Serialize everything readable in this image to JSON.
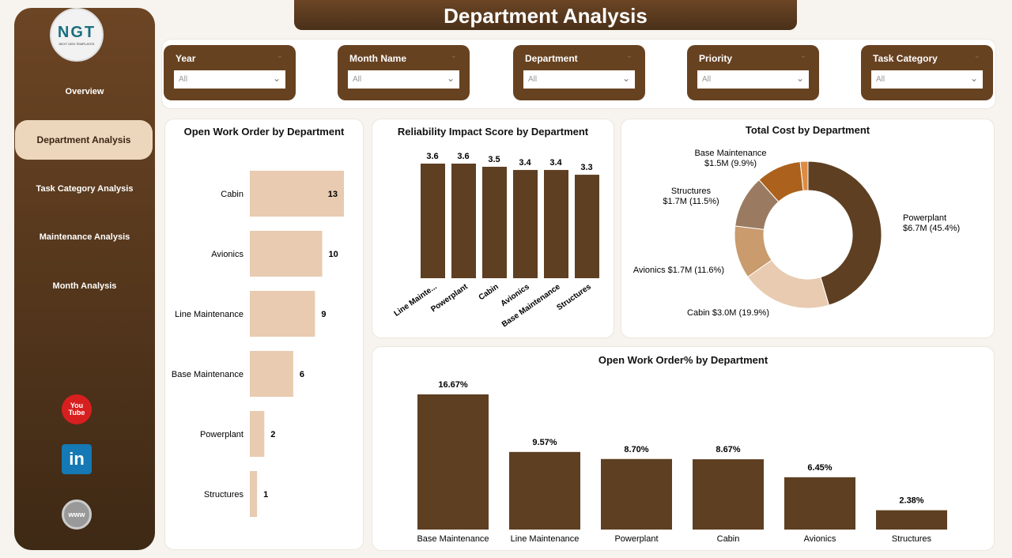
{
  "title": "Department Analysis",
  "logo": {
    "text": "NGT",
    "subtext": "NEXT GEN TEMPLATES"
  },
  "nav": [
    {
      "label": "Overview"
    },
    {
      "label": "Department Analysis",
      "active": true
    },
    {
      "label": "Task Category Analysis"
    },
    {
      "label": "Maintenance Analysis"
    },
    {
      "label": "Month Analysis"
    }
  ],
  "social": [
    {
      "icon": "youtube-icon",
      "label": "You Tube"
    },
    {
      "icon": "linkedin-icon",
      "label": "in"
    },
    {
      "icon": "globe-icon",
      "label": "www"
    }
  ],
  "filters": [
    {
      "label": "Year",
      "value": "All"
    },
    {
      "label": "Month Name",
      "value": "All"
    },
    {
      "label": "Department",
      "value": "All"
    },
    {
      "label": "Priority",
      "value": "All"
    },
    {
      "label": "Task Category",
      "value": "All"
    }
  ],
  "colors": {
    "brown": "#5e3f22",
    "light": "#e8cbb0",
    "accent": "#ecd7bd"
  },
  "chart_data": [
    {
      "type": "bar",
      "orientation": "horizontal",
      "title": "Open Work Order by Department",
      "categories": [
        "Cabin",
        "Avionics",
        "Line Maintenance",
        "Base Maintenance",
        "Powerplant",
        "Structures"
      ],
      "values": [
        13,
        10,
        9,
        6,
        2,
        1
      ]
    },
    {
      "type": "bar",
      "title": "Reliability Impact Score by Department",
      "categories": [
        "Line Mainte...",
        "Powerplant",
        "Cabin",
        "Avionics",
        "Base Maintenance",
        "Structures"
      ],
      "values": [
        3.6,
        3.6,
        3.5,
        3.4,
        3.4,
        3.3
      ]
    },
    {
      "type": "pie",
      "donut": true,
      "title": "Total Cost by Department",
      "slices": [
        {
          "name": "Powerplant",
          "label": "$6.7M (45.4%)",
          "percent": 45.4,
          "color": "#5e3f22"
        },
        {
          "name": "Cabin",
          "label": "$3.0M (19.9%)",
          "percent": 19.9,
          "color": "#e8cbb0"
        },
        {
          "name": "Avionics",
          "label": "$1.7M (11.6%)",
          "percent": 11.6,
          "color": "#c99b6d"
        },
        {
          "name": "Structures",
          "label": "$1.7M (11.5%)",
          "percent": 11.5,
          "color": "#9a7b61"
        },
        {
          "name": "Base Maintenance",
          "label": "$1.5M (9.9%)",
          "percent": 9.9,
          "color": "#ac621c"
        },
        {
          "name": "",
          "label": "",
          "percent": 1.7,
          "color": "#dd8c45"
        }
      ]
    },
    {
      "type": "bar",
      "title": "Open Work Order% by Department",
      "categories": [
        "Base Maintenance",
        "Line Maintenance",
        "Powerplant",
        "Cabin",
        "Avionics",
        "Structures"
      ],
      "values": [
        16.67,
        9.57,
        8.7,
        8.67,
        6.45,
        2.38
      ],
      "labels": [
        "16.67%",
        "9.57%",
        "8.70%",
        "8.67%",
        "6.45%",
        "2.38%"
      ]
    }
  ]
}
